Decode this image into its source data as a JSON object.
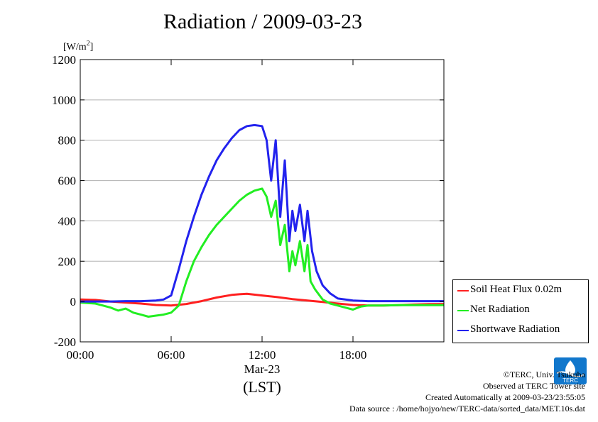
{
  "page": {
    "title": "Radiation / 2009-03-23",
    "credits": [
      "©TERC, Univ. Tsukuba",
      "Observed at TERC Tower site",
      "Created Automatically at 2009-03-23/23:55:05",
      "Data source : /home/hojyo/new/TERC-data/sorted_data/MET.10s.dat"
    ],
    "logo_text": "TERC"
  },
  "chart_data": {
    "type": "line",
    "title": "Radiation / 2009-03-23",
    "ylabel": "[W/m",
    "ylabel_sup": "2",
    "ylabel_close": "]",
    "xlabel_date": "Mar-23",
    "xlabel": "(LST)",
    "xlim": [
      0,
      24
    ],
    "ylim": [
      -200,
      1200
    ],
    "x_ticks": [
      0,
      6,
      12,
      18
    ],
    "x_tick_labels": [
      "00:00",
      "06:00",
      "12:00",
      "18:00"
    ],
    "y_ticks": [
      -200,
      0,
      200,
      400,
      600,
      800,
      1000,
      1200
    ],
    "y_tick_labels": [
      "-200",
      "0",
      "200",
      "400",
      "600",
      "800",
      "1000",
      "1200"
    ],
    "grid": "horizontal",
    "legend_position": "right",
    "series": [
      {
        "name": "Soil Heat Flux 0.02m",
        "color": "#ff2020",
        "x": [
          0,
          1,
          2,
          3,
          4,
          5,
          6,
          7,
          8,
          9,
          10,
          10.5,
          11,
          12,
          13,
          14,
          15,
          16,
          17,
          18,
          19,
          20,
          21,
          22,
          23,
          24
        ],
        "y": [
          10,
          8,
          0,
          -5,
          -10,
          -17,
          -20,
          -12,
          2,
          20,
          33,
          36,
          38,
          30,
          22,
          12,
          5,
          -2,
          -10,
          -17,
          -20,
          -20,
          -18,
          -15,
          -13,
          -12
        ]
      },
      {
        "name": "Net Radiation",
        "color": "#22ee22",
        "x": [
          0,
          1,
          1.5,
          2,
          2.5,
          3,
          3.5,
          4,
          4.5,
          5,
          5.5,
          6,
          6.5,
          7,
          7.5,
          8,
          8.5,
          9,
          9.5,
          10,
          10.5,
          11,
          11.5,
          12,
          12.3,
          12.6,
          12.9,
          13.2,
          13.5,
          13.8,
          14,
          14.2,
          14.5,
          14.8,
          15,
          15.2,
          15.5,
          16,
          16.5,
          17,
          17.5,
          18,
          18.5,
          19,
          20,
          21,
          22,
          23,
          24
        ],
        "y": [
          -5,
          -10,
          -20,
          -30,
          -45,
          -35,
          -55,
          -65,
          -75,
          -70,
          -65,
          -55,
          -20,
          100,
          200,
          270,
          330,
          380,
          420,
          460,
          500,
          530,
          550,
          560,
          520,
          420,
          500,
          280,
          380,
          150,
          250,
          180,
          300,
          150,
          280,
          100,
          60,
          10,
          -10,
          -20,
          -30,
          -40,
          -25,
          -20,
          -20,
          -18,
          -18,
          -18,
          -18
        ]
      },
      {
        "name": "Shortwave Radiation",
        "color": "#2222ee",
        "x": [
          0,
          2,
          3,
          4,
          5,
          5.5,
          6,
          6.5,
          7,
          7.5,
          8,
          8.5,
          9,
          9.5,
          10,
          10.5,
          11,
          11.5,
          12,
          12.3,
          12.6,
          12.9,
          13.2,
          13.5,
          13.8,
          14,
          14.2,
          14.5,
          14.8,
          15,
          15.3,
          15.6,
          16,
          16.5,
          17,
          18,
          19,
          20,
          21,
          22,
          23,
          24
        ],
        "y": [
          0,
          0,
          2,
          2,
          5,
          10,
          30,
          160,
          300,
          420,
          530,
          620,
          700,
          760,
          810,
          850,
          870,
          875,
          870,
          800,
          600,
          800,
          420,
          700,
          300,
          450,
          350,
          480,
          300,
          450,
          250,
          150,
          80,
          40,
          15,
          5,
          2,
          2,
          2,
          2,
          2,
          2
        ]
      }
    ]
  }
}
